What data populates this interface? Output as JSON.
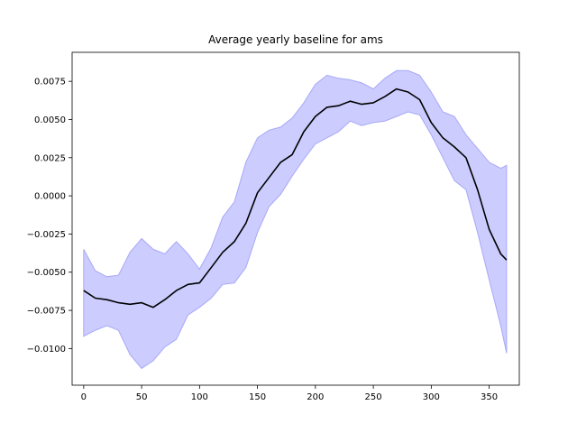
{
  "chart_data": {
    "type": "area",
    "title": "Average yearly baseline for ams",
    "xlabel": "",
    "ylabel": "",
    "xlim": [
      -10,
      376
    ],
    "ylim": [
      -0.0124,
      0.0094
    ],
    "x_ticks": [
      0,
      50,
      100,
      150,
      200,
      250,
      300,
      350
    ],
    "x_tick_labels": [
      "0",
      "50",
      "100",
      "150",
      "200",
      "250",
      "300",
      "350"
    ],
    "y_ticks": [
      -0.01,
      -0.0075,
      -0.005,
      -0.0025,
      0.0,
      0.0025,
      0.005,
      0.0075
    ],
    "y_tick_labels": [
      "−0.0100",
      "−0.0075",
      "−0.0050",
      "−0.0025",
      "0.0000",
      "0.0025",
      "0.0050",
      "0.0075"
    ],
    "grid": false,
    "colors": {
      "mean_line": "#000000",
      "band_fill": "#ccccff",
      "band_edge": "#a8a8f8"
    },
    "series": [
      {
        "kind": "line",
        "x": [
          0,
          10,
          20,
          30,
          40,
          50,
          60,
          70,
          80,
          90,
          100,
          110,
          120,
          130,
          140,
          150,
          160,
          170,
          180,
          190,
          200,
          210,
          220,
          230,
          240,
          250,
          260,
          270,
          280,
          290,
          300,
          310,
          320,
          330,
          340,
          350,
          360,
          365
        ],
        "values": [
          -0.0062,
          -0.0067,
          -0.0068,
          -0.007,
          -0.0071,
          -0.007,
          -0.0073,
          -0.0068,
          -0.0062,
          -0.0058,
          -0.0057,
          -0.0047,
          -0.0037,
          -0.003,
          -0.0018,
          0.0002,
          0.0012,
          0.0022,
          0.0027,
          0.0042,
          0.0052,
          0.0058,
          0.0059,
          0.0062,
          0.006,
          0.0061,
          0.0065,
          0.007,
          0.0068,
          0.0063,
          0.0048,
          0.0038,
          0.0032,
          0.0025,
          0.0004,
          -0.0022,
          -0.0038,
          -0.0042
        ]
      },
      {
        "kind": "band",
        "x": [
          0,
          10,
          20,
          30,
          40,
          50,
          60,
          70,
          80,
          90,
          100,
          110,
          120,
          130,
          140,
          150,
          160,
          170,
          180,
          190,
          200,
          210,
          220,
          230,
          240,
          250,
          260,
          270,
          280,
          290,
          300,
          310,
          320,
          330,
          340,
          350,
          360,
          365
        ],
        "upper": [
          -0.0035,
          -0.0049,
          -0.0053,
          -0.0052,
          -0.0037,
          -0.0028,
          -0.0035,
          -0.0038,
          -0.003,
          -0.0038,
          -0.0048,
          -0.0034,
          -0.0014,
          -0.0004,
          0.0022,
          0.0038,
          0.0043,
          0.0045,
          0.0051,
          0.0061,
          0.0073,
          0.0079,
          0.0077,
          0.0076,
          0.0074,
          0.007,
          0.0077,
          0.0082,
          0.0082,
          0.0079,
          0.0068,
          0.0055,
          0.0052,
          0.004,
          0.0031,
          0.0022,
          0.0018,
          0.002
        ],
        "lower": [
          -0.0092,
          -0.0088,
          -0.0085,
          -0.0088,
          -0.0104,
          -0.0113,
          -0.0108,
          -0.0099,
          -0.0094,
          -0.0078,
          -0.0073,
          -0.0067,
          -0.0058,
          -0.0057,
          -0.0047,
          -0.0024,
          -0.0007,
          0.0001,
          0.0013,
          0.0024,
          0.0034,
          0.0038,
          0.0042,
          0.0049,
          0.0046,
          0.0048,
          0.0049,
          0.0052,
          0.0055,
          0.0053,
          0.004,
          0.0025,
          0.001,
          0.0004,
          -0.0024,
          -0.0055,
          -0.0085,
          -0.0103
        ]
      }
    ]
  }
}
